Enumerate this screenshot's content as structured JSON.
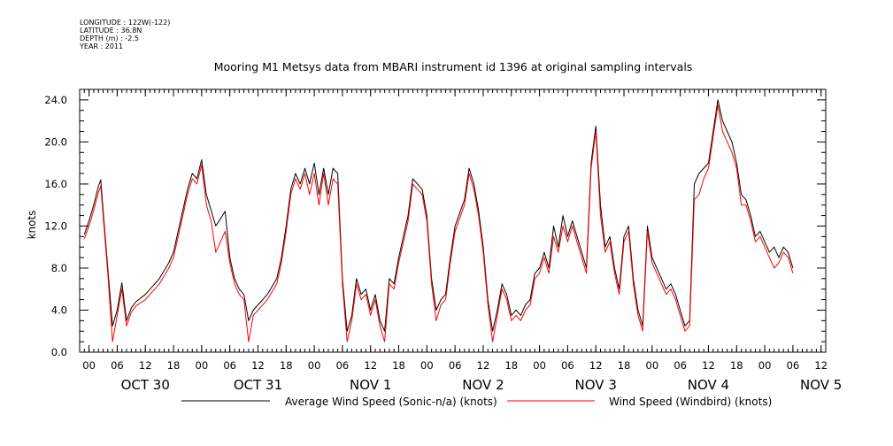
{
  "header": {
    "longitude": "LONGITUDE : 122W(-122)",
    "latitude": "LATITUDE : 36.8N",
    "depth": "DEPTH (m) : -2.5",
    "year": "YEAR : 2011"
  },
  "chart_data": {
    "type": "line",
    "title": "Mooring M1 Metsys data from MBARI instrument id 1396 at original sampling intervals",
    "ylabel": "knots",
    "ylim": [
      0,
      25
    ],
    "yticks": [
      "0.0",
      "4.0",
      "8.0",
      "12.0",
      "16.0",
      "20.0",
      "24.0"
    ],
    "xlim_hours": [
      -2,
      157
    ],
    "x_hour_ticks": [
      0,
      6,
      12,
      18,
      24,
      30,
      36,
      42,
      48,
      54,
      60,
      66,
      72,
      78,
      84,
      90,
      96,
      102,
      108,
      114,
      120,
      126,
      132,
      138,
      144,
      150,
      156
    ],
    "x_hour_labels": [
      "00",
      "06",
      "12",
      "18",
      "00",
      "06",
      "12",
      "18",
      "00",
      "06",
      "12",
      "18",
      "00",
      "06",
      "12",
      "18",
      "00",
      "06",
      "12",
      "18",
      "00",
      "06",
      "12",
      "18",
      "00",
      "06",
      "12"
    ],
    "day_labels": [
      {
        "label": "OCT 30",
        "hour": 12
      },
      {
        "label": "OCT 31",
        "hour": 36
      },
      {
        "label": "NOV  1",
        "hour": 60
      },
      {
        "label": "NOV  2",
        "hour": 84
      },
      {
        "label": "NOV  3",
        "hour": 108
      },
      {
        "label": "NOV  4",
        "hour": 132
      },
      {
        "label": "NOV  5",
        "hour": 156
      }
    ],
    "series": [
      {
        "name": "Average Wind Speed (Sonic-n/a) (knots)",
        "color": "#000000",
        "points": [
          [
            -1,
            11.2
          ],
          [
            0,
            12.5
          ],
          [
            1,
            14.0
          ],
          [
            2,
            15.8
          ],
          [
            2.5,
            16.4
          ],
          [
            3,
            13.5
          ],
          [
            4,
            8.0
          ],
          [
            5,
            2.5
          ],
          [
            6,
            4.0
          ],
          [
            7,
            6.6
          ],
          [
            8,
            3.0
          ],
          [
            9,
            4.2
          ],
          [
            10,
            4.8
          ],
          [
            12,
            5.5
          ],
          [
            14,
            6.5
          ],
          [
            15,
            7.0
          ],
          [
            17,
            8.5
          ],
          [
            18,
            9.5
          ],
          [
            20,
            13.5
          ],
          [
            21,
            15.5
          ],
          [
            22,
            17.0
          ],
          [
            23,
            16.5
          ],
          [
            24,
            18.3
          ],
          [
            25,
            15.0
          ],
          [
            26,
            13.5
          ],
          [
            27,
            12.0
          ],
          [
            29,
            13.4
          ],
          [
            30,
            9.0
          ],
          [
            31,
            7.0
          ],
          [
            32,
            6.0
          ],
          [
            33,
            5.5
          ],
          [
            34,
            3.0
          ],
          [
            35,
            4.0
          ],
          [
            36,
            4.5
          ],
          [
            38,
            5.5
          ],
          [
            40,
            7.0
          ],
          [
            41,
            9.0
          ],
          [
            42,
            12.0
          ],
          [
            43,
            15.5
          ],
          [
            44,
            17.0
          ],
          [
            45,
            16.0
          ],
          [
            46,
            17.5
          ],
          [
            47,
            16.0
          ],
          [
            48,
            18.0
          ],
          [
            49,
            15.0
          ],
          [
            50,
            17.5
          ],
          [
            51,
            15.0
          ],
          [
            52,
            17.5
          ],
          [
            53,
            17.0
          ],
          [
            54,
            7.0
          ],
          [
            55,
            2.0
          ],
          [
            56,
            3.5
          ],
          [
            57,
            7.0
          ],
          [
            58,
            5.5
          ],
          [
            59,
            6.0
          ],
          [
            60,
            4.0
          ],
          [
            61,
            5.5
          ],
          [
            62,
            3.0
          ],
          [
            63,
            2.0
          ],
          [
            64,
            7.0
          ],
          [
            65,
            6.5
          ],
          [
            66,
            9.0
          ],
          [
            67,
            11.0
          ],
          [
            68,
            13.0
          ],
          [
            69,
            16.5
          ],
          [
            70,
            16.0
          ],
          [
            71,
            15.5
          ],
          [
            72,
            13.0
          ],
          [
            73,
            7.0
          ],
          [
            74,
            4.0
          ],
          [
            75,
            5.0
          ],
          [
            76,
            5.5
          ],
          [
            77,
            9.0
          ],
          [
            78,
            12.0
          ],
          [
            80,
            14.5
          ],
          [
            81,
            17.5
          ],
          [
            82,
            16.0
          ],
          [
            83,
            13.5
          ],
          [
            84,
            10.0
          ],
          [
            85,
            5.0
          ],
          [
            86,
            2.0
          ],
          [
            87,
            4.0
          ],
          [
            88,
            6.5
          ],
          [
            89,
            5.5
          ],
          [
            90,
            3.5
          ],
          [
            91,
            4.0
          ],
          [
            92,
            3.5
          ],
          [
            93,
            4.5
          ],
          [
            94,
            5.0
          ],
          [
            95,
            7.5
          ],
          [
            96,
            8.0
          ],
          [
            97,
            9.5
          ],
          [
            98,
            8.0
          ],
          [
            99,
            12.0
          ],
          [
            100,
            10.0
          ],
          [
            101,
            13.0
          ],
          [
            102,
            11.0
          ],
          [
            103,
            12.5
          ],
          [
            104,
            11.0
          ],
          [
            105,
            9.5
          ],
          [
            106,
            8.0
          ],
          [
            107,
            18.0
          ],
          [
            108,
            21.5
          ],
          [
            109,
            14.0
          ],
          [
            110,
            10.0
          ],
          [
            111,
            11.0
          ],
          [
            112,
            8.0
          ],
          [
            113,
            6.0
          ],
          [
            114,
            11.0
          ],
          [
            115,
            12.0
          ],
          [
            116,
            7.0
          ],
          [
            117,
            4.0
          ],
          [
            118,
            2.5
          ],
          [
            119,
            12.0
          ],
          [
            120,
            9.0
          ],
          [
            121,
            8.0
          ],
          [
            122,
            7.0
          ],
          [
            123,
            6.0
          ],
          [
            124,
            6.5
          ],
          [
            125,
            5.5
          ],
          [
            126,
            4.0
          ],
          [
            127,
            2.5
          ],
          [
            128,
            3.0
          ],
          [
            129,
            16.0
          ],
          [
            130,
            17.0
          ],
          [
            131,
            17.5
          ],
          [
            132,
            18.0
          ],
          [
            133,
            21.0
          ],
          [
            134,
            24.0
          ],
          [
            135,
            22.0
          ],
          [
            136,
            21.0
          ],
          [
            137,
            20.0
          ],
          [
            138,
            18.0
          ],
          [
            139,
            15.0
          ],
          [
            140,
            14.5
          ],
          [
            141,
            13.0
          ],
          [
            142,
            11.0
          ],
          [
            143,
            11.5
          ],
          [
            144,
            10.5
          ],
          [
            145,
            9.5
          ],
          [
            146,
            10.0
          ],
          [
            147,
            9.0
          ],
          [
            148,
            10.0
          ],
          [
            149,
            9.5
          ],
          [
            150,
            8.0
          ]
        ]
      },
      {
        "name": "Wind Speed (Windbird) (knots)",
        "color": "#ff0000",
        "points": [
          [
            -1,
            10.8
          ],
          [
            0,
            12.0
          ],
          [
            1,
            13.5
          ],
          [
            2,
            15.2
          ],
          [
            2.5,
            15.8
          ],
          [
            3,
            13.0
          ],
          [
            4,
            7.5
          ],
          [
            5,
            1.0
          ],
          [
            6,
            3.5
          ],
          [
            7,
            6.0
          ],
          [
            8,
            2.5
          ],
          [
            9,
            3.8
          ],
          [
            10,
            4.4
          ],
          [
            12,
            5.0
          ],
          [
            14,
            6.0
          ],
          [
            15,
            6.5
          ],
          [
            17,
            8.0
          ],
          [
            18,
            9.0
          ],
          [
            20,
            13.0
          ],
          [
            21,
            15.0
          ],
          [
            22,
            16.5
          ],
          [
            23,
            16.0
          ],
          [
            24,
            17.8
          ],
          [
            25,
            14.0
          ],
          [
            26,
            12.5
          ],
          [
            27,
            9.5
          ],
          [
            29,
            11.5
          ],
          [
            30,
            8.5
          ],
          [
            31,
            6.5
          ],
          [
            32,
            5.5
          ],
          [
            33,
            5.0
          ],
          [
            34,
            1.0
          ],
          [
            35,
            3.5
          ],
          [
            36,
            4.0
          ],
          [
            38,
            5.0
          ],
          [
            40,
            6.5
          ],
          [
            41,
            8.5
          ],
          [
            42,
            11.5
          ],
          [
            43,
            15.0
          ],
          [
            44,
            16.5
          ],
          [
            45,
            15.5
          ],
          [
            46,
            17.0
          ],
          [
            47,
            15.0
          ],
          [
            48,
            17.0
          ],
          [
            49,
            14.0
          ],
          [
            50,
            17.0
          ],
          [
            51,
            14.0
          ],
          [
            52,
            16.5
          ],
          [
            53,
            16.0
          ],
          [
            54,
            6.5
          ],
          [
            55,
            1.0
          ],
          [
            56,
            3.0
          ],
          [
            57,
            6.5
          ],
          [
            58,
            5.0
          ],
          [
            59,
            5.5
          ],
          [
            60,
            3.5
          ],
          [
            61,
            5.0
          ],
          [
            62,
            2.5
          ],
          [
            63,
            1.0
          ],
          [
            64,
            6.5
          ],
          [
            65,
            6.0
          ],
          [
            66,
            8.5
          ],
          [
            67,
            10.5
          ],
          [
            68,
            12.5
          ],
          [
            69,
            16.0
          ],
          [
            70,
            15.5
          ],
          [
            71,
            15.0
          ],
          [
            72,
            12.5
          ],
          [
            73,
            6.5
          ],
          [
            74,
            3.0
          ],
          [
            75,
            4.5
          ],
          [
            76,
            5.0
          ],
          [
            77,
            8.5
          ],
          [
            78,
            11.5
          ],
          [
            80,
            14.0
          ],
          [
            81,
            17.0
          ],
          [
            82,
            15.5
          ],
          [
            83,
            13.0
          ],
          [
            84,
            9.5
          ],
          [
            85,
            4.5
          ],
          [
            86,
            1.0
          ],
          [
            87,
            3.5
          ],
          [
            88,
            6.0
          ],
          [
            89,
            5.0
          ],
          [
            90,
            3.0
          ],
          [
            91,
            3.5
          ],
          [
            92,
            3.0
          ],
          [
            93,
            4.0
          ],
          [
            94,
            4.5
          ],
          [
            95,
            7.0
          ],
          [
            96,
            7.5
          ],
          [
            97,
            9.0
          ],
          [
            98,
            7.5
          ],
          [
            99,
            11.0
          ],
          [
            100,
            9.5
          ],
          [
            101,
            12.0
          ],
          [
            102,
            10.5
          ],
          [
            103,
            12.0
          ],
          [
            104,
            10.5
          ],
          [
            105,
            9.0
          ],
          [
            106,
            7.5
          ],
          [
            107,
            17.5
          ],
          [
            108,
            21.0
          ],
          [
            109,
            13.0
          ],
          [
            110,
            9.5
          ],
          [
            111,
            10.5
          ],
          [
            112,
            7.5
          ],
          [
            113,
            5.5
          ],
          [
            114,
            10.5
          ],
          [
            115,
            11.5
          ],
          [
            116,
            6.5
          ],
          [
            117,
            3.5
          ],
          [
            118,
            2.0
          ],
          [
            119,
            11.5
          ],
          [
            120,
            8.5
          ],
          [
            121,
            7.5
          ],
          [
            122,
            6.5
          ],
          [
            123,
            5.5
          ],
          [
            124,
            6.0
          ],
          [
            125,
            5.0
          ],
          [
            126,
            3.5
          ],
          [
            127,
            2.0
          ],
          [
            128,
            2.5
          ],
          [
            129,
            14.5
          ],
          [
            130,
            15.0
          ],
          [
            131,
            16.5
          ],
          [
            132,
            17.5
          ],
          [
            133,
            20.5
          ],
          [
            134,
            23.5
          ],
          [
            135,
            21.0
          ],
          [
            136,
            20.0
          ],
          [
            137,
            19.0
          ],
          [
            138,
            17.5
          ],
          [
            139,
            14.0
          ],
          [
            140,
            14.0
          ],
          [
            141,
            12.5
          ],
          [
            142,
            10.5
          ],
          [
            143,
            11.0
          ],
          [
            144,
            10.0
          ],
          [
            145,
            9.0
          ],
          [
            146,
            8.0
          ],
          [
            147,
            8.5
          ],
          [
            148,
            9.5
          ],
          [
            149,
            9.0
          ],
          [
            150,
            7.5
          ]
        ]
      }
    ],
    "legend_placement": "bottom",
    "grid": false
  }
}
